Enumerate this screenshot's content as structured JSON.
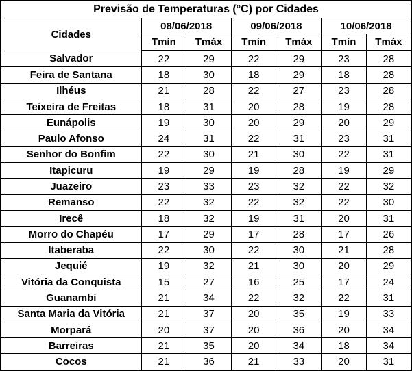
{
  "colors": {
    "border": "#000000",
    "text": "#000000",
    "background": "#ffffff"
  },
  "chart_data": {
    "type": "table",
    "title": "Previsão de Temperaturas (°C) por Cidades",
    "city_header": "Cidades",
    "date_headers": [
      "08/06/2018",
      "09/06/2018",
      "10/06/2018"
    ],
    "sub_headers": [
      "Tmín",
      "Tmáx"
    ],
    "columns": [
      "Cidades",
      "08/06/2018 Tmín",
      "08/06/2018 Tmáx",
      "09/06/2018 Tmín",
      "09/06/2018 Tmáx",
      "10/06/2018 Tmín",
      "10/06/2018 Tmáx"
    ],
    "rows": [
      {
        "city": "Salvador",
        "values": [
          22,
          29,
          22,
          29,
          23,
          28
        ]
      },
      {
        "city": "Feira de Santana",
        "values": [
          18,
          30,
          18,
          29,
          18,
          28
        ]
      },
      {
        "city": "Ilhéus",
        "values": [
          21,
          28,
          22,
          27,
          23,
          28
        ]
      },
      {
        "city": "Teixeira de Freitas",
        "values": [
          18,
          31,
          20,
          28,
          19,
          28
        ]
      },
      {
        "city": "Eunápolis",
        "values": [
          19,
          30,
          20,
          29,
          20,
          29
        ]
      },
      {
        "city": "Paulo Afonso",
        "values": [
          24,
          31,
          22,
          31,
          23,
          31
        ]
      },
      {
        "city": "Senhor do Bonfim",
        "values": [
          22,
          30,
          21,
          30,
          22,
          31
        ]
      },
      {
        "city": "Itapicuru",
        "values": [
          19,
          29,
          19,
          28,
          19,
          29
        ]
      },
      {
        "city": "Juazeiro",
        "values": [
          23,
          33,
          23,
          32,
          22,
          32
        ]
      },
      {
        "city": "Remanso",
        "values": [
          22,
          32,
          22,
          32,
          22,
          30
        ]
      },
      {
        "city": "Irecê",
        "values": [
          18,
          32,
          19,
          31,
          20,
          31
        ]
      },
      {
        "city": "Morro do Chapéu",
        "values": [
          17,
          29,
          17,
          28,
          17,
          26
        ]
      },
      {
        "city": "Itaberaba",
        "values": [
          22,
          30,
          22,
          30,
          21,
          28
        ]
      },
      {
        "city": "Jequié",
        "values": [
          19,
          32,
          21,
          30,
          20,
          29
        ]
      },
      {
        "city": "Vitória da Conquista",
        "values": [
          15,
          27,
          16,
          25,
          17,
          24
        ]
      },
      {
        "city": "Guanambi",
        "values": [
          21,
          34,
          22,
          32,
          22,
          31
        ]
      },
      {
        "city": "Santa Maria da Vitória",
        "values": [
          21,
          37,
          20,
          35,
          19,
          33
        ]
      },
      {
        "city": "Morpará",
        "values": [
          20,
          37,
          20,
          36,
          20,
          34
        ]
      },
      {
        "city": "Barreiras",
        "values": [
          21,
          35,
          20,
          34,
          18,
          34
        ]
      },
      {
        "city": "Cocos",
        "values": [
          21,
          36,
          21,
          33,
          20,
          31
        ]
      }
    ]
  }
}
